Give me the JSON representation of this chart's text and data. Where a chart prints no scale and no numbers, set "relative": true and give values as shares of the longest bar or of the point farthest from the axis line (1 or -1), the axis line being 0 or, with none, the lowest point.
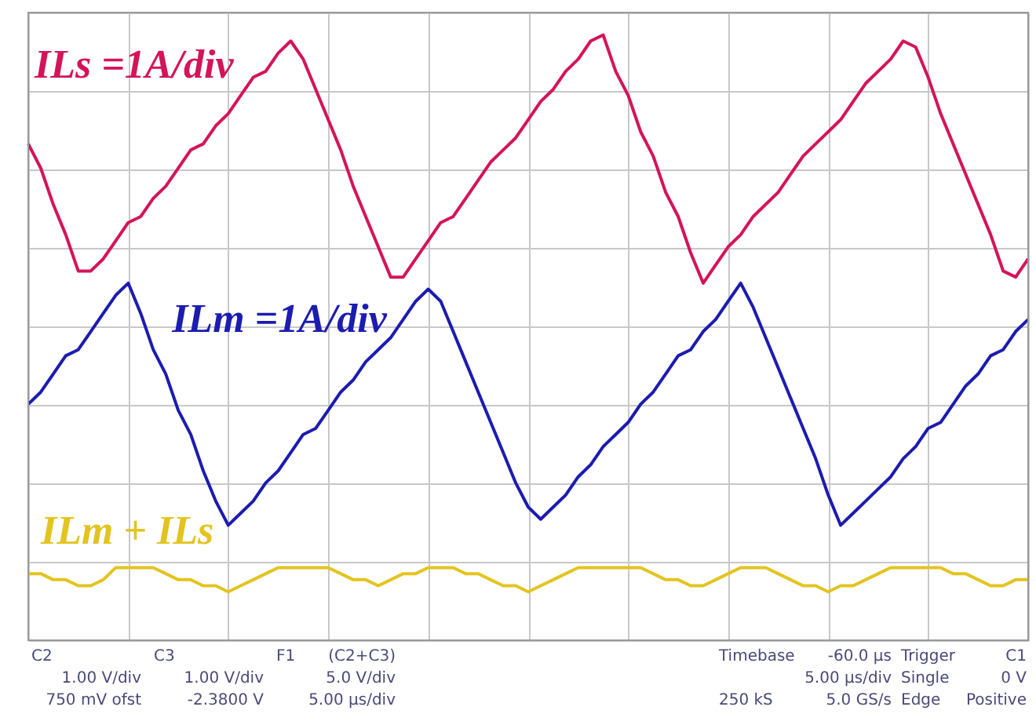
{
  "chart_data": {
    "type": "line",
    "relative": true,
    "grid": true,
    "legend": false,
    "tick_labels": false,
    "line_style": "solid",
    "marker": "none",
    "categories": [
      null,
      null,
      null,
      null,
      null,
      null,
      null,
      null,
      null,
      null,
      null,
      null,
      null,
      null,
      null,
      null,
      null,
      null,
      null,
      null,
      null,
      null,
      null,
      null,
      null,
      null,
      null,
      null,
      null,
      null,
      null,
      null,
      null,
      null,
      null,
      null,
      null,
      null,
      null,
      null,
      null,
      null,
      null,
      null,
      null,
      null,
      null,
      null,
      null,
      null,
      null,
      null,
      null,
      null,
      null,
      null,
      null,
      null,
      null,
      null,
      null,
      null,
      null,
      null,
      null,
      null,
      null,
      null,
      null,
      null,
      null,
      null,
      null,
      null,
      null,
      null,
      null,
      null,
      null,
      null,
      null
    ],
    "series": [
      {
        "name": "ILs =1A/div",
        "color": "#d4145a",
        "values": [
          0.82,
          0.78,
          0.72,
          0.67,
          0.61,
          0.61,
          0.63,
          0.66,
          0.69,
          0.7,
          0.73,
          0.75,
          0.78,
          0.81,
          0.82,
          0.85,
          0.87,
          0.9,
          0.93,
          0.94,
          0.97,
          0.99,
          0.96,
          0.91,
          0.86,
          0.81,
          0.75,
          0.7,
          0.65,
          0.6,
          0.6,
          0.63,
          0.66,
          0.69,
          0.7,
          0.73,
          0.76,
          0.79,
          0.81,
          0.83,
          0.86,
          0.89,
          0.91,
          0.94,
          0.96,
          0.99,
          1.0,
          0.94,
          0.9,
          0.84,
          0.8,
          0.74,
          0.7,
          0.64,
          0.59,
          0.62,
          0.65,
          0.67,
          0.7,
          0.72,
          0.74,
          0.77,
          0.8,
          0.82,
          0.84,
          0.86,
          0.89,
          0.92,
          0.94,
          0.96,
          0.99,
          0.98,
          0.93,
          0.87,
          0.82,
          0.77,
          0.72,
          0.67,
          0.61,
          0.6,
          0.63
        ]
      },
      {
        "name": "ILm =1A/div",
        "color": "#1c1cb0",
        "values": [
          0.39,
          0.41,
          0.44,
          0.47,
          0.48,
          0.51,
          0.54,
          0.57,
          0.59,
          0.54,
          0.48,
          0.44,
          0.38,
          0.34,
          0.28,
          0.23,
          0.19,
          0.21,
          0.23,
          0.26,
          0.28,
          0.31,
          0.34,
          0.35,
          0.38,
          0.41,
          0.43,
          0.46,
          0.48,
          0.5,
          0.53,
          0.56,
          0.58,
          0.56,
          0.51,
          0.46,
          0.41,
          0.36,
          0.31,
          0.26,
          0.22,
          0.2,
          0.22,
          0.24,
          0.27,
          0.29,
          0.32,
          0.34,
          0.36,
          0.39,
          0.41,
          0.44,
          0.47,
          0.48,
          0.51,
          0.53,
          0.56,
          0.59,
          0.55,
          0.5,
          0.45,
          0.4,
          0.35,
          0.3,
          0.24,
          0.19,
          0.21,
          0.23,
          0.25,
          0.27,
          0.3,
          0.32,
          0.35,
          0.36,
          0.39,
          0.42,
          0.44,
          0.47,
          0.48,
          0.51,
          0.53
        ]
      },
      {
        "name": "ILm + ILs",
        "color": "#e3c41f",
        "values": [
          0.11,
          0.11,
          0.1,
          0.1,
          0.09,
          0.09,
          0.1,
          0.12,
          0.12,
          0.12,
          0.12,
          0.11,
          0.1,
          0.1,
          0.09,
          0.09,
          0.08,
          0.09,
          0.1,
          0.11,
          0.12,
          0.12,
          0.12,
          0.12,
          0.12,
          0.11,
          0.1,
          0.1,
          0.09,
          0.1,
          0.11,
          0.11,
          0.12,
          0.12,
          0.12,
          0.11,
          0.11,
          0.1,
          0.09,
          0.09,
          0.08,
          0.09,
          0.1,
          0.11,
          0.12,
          0.12,
          0.12,
          0.12,
          0.12,
          0.12,
          0.11,
          0.1,
          0.1,
          0.09,
          0.09,
          0.1,
          0.11,
          0.12,
          0.12,
          0.12,
          0.11,
          0.1,
          0.09,
          0.09,
          0.08,
          0.09,
          0.09,
          0.1,
          0.11,
          0.12,
          0.12,
          0.12,
          0.12,
          0.12,
          0.11,
          0.11,
          0.1,
          0.09,
          0.09,
          0.1,
          0.1
        ]
      }
    ],
    "annotations": [
      "C2",
      "1.00 V/div",
      "750 mV ofst",
      "C3",
      "1.00 V/div",
      "-2.3800 V",
      "F1",
      "(C2+C3)",
      "5.0 V/div",
      "5.00 µs/div",
      "Timebase",
      "-60.0 µs",
      "5.00 µs/div",
      "250 kS",
      "5.0 GS/s",
      "Trigger",
      "C1",
      "Single",
      "0 V",
      "Edge",
      "Positive"
    ]
  }
}
